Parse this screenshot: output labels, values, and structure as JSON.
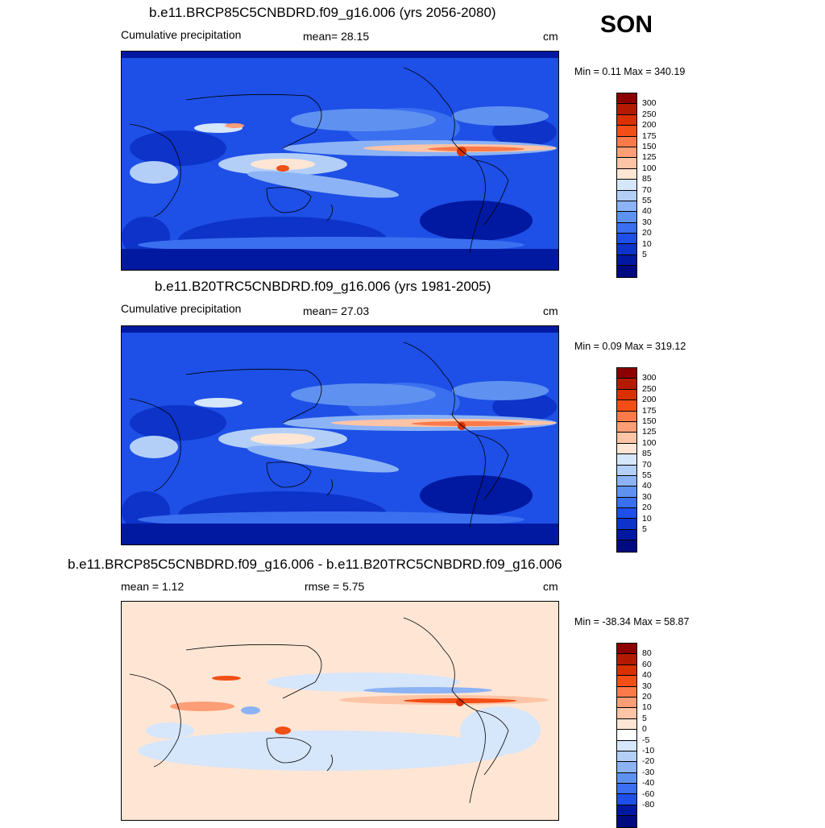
{
  "season": "SON",
  "panels": [
    {
      "title": "b.e11.BRCP85C5CNBDRD.f09_g16.006 (yrs 2056-2080)",
      "left_label": "Cumulative precipitation",
      "center_label": "mean=  28.15",
      "units": "cm",
      "minmax": "Min =   0.11 Max = 340.19",
      "colorbar": {
        "colors": [
          "#8b0000",
          "#b21b00",
          "#d73100",
          "#f24f16",
          "#fa7a4a",
          "#fd9e77",
          "#fec4a6",
          "#ffe6d4",
          "#d6e6fb",
          "#b3cff8",
          "#8cb3f5",
          "#5f92f0",
          "#3a6ff0",
          "#1e4fe6",
          "#0d33c8",
          "#0019a0",
          "#000a80"
        ],
        "labels": [
          "300",
          "250",
          "200",
          "175",
          "150",
          "125",
          "100",
          "85",
          "70",
          "55",
          "40",
          "30",
          "20",
          "10",
          "5"
        ]
      }
    },
    {
      "title": "b.e11.B20TRC5CNBDRD.f09_g16.006 (yrs 1981-2005)",
      "left_label": "Cumulative precipitation",
      "center_label": "mean=  27.03",
      "units": "cm",
      "minmax": "Min =   0.09 Max = 319.12",
      "colorbar": {
        "colors": [
          "#8b0000",
          "#b21b00",
          "#d73100",
          "#f24f16",
          "#fa7a4a",
          "#fd9e77",
          "#fec4a6",
          "#ffe6d4",
          "#d6e6fb",
          "#b3cff8",
          "#8cb3f5",
          "#5f92f0",
          "#3a6ff0",
          "#1e4fe6",
          "#0d33c8",
          "#0019a0",
          "#000a80"
        ],
        "labels": [
          "300",
          "250",
          "200",
          "175",
          "150",
          "125",
          "100",
          "85",
          "70",
          "55",
          "40",
          "30",
          "20",
          "10",
          "5"
        ]
      }
    },
    {
      "title": "b.e11.BRCP85C5CNBDRD.f09_g16.006 - b.e11.B20TRC5CNBDRD.f09_g16.006",
      "left_label": "mean =   1.12",
      "center_label": "rmse =   5.75",
      "units": "cm",
      "minmax": "Min = -38.34 Max =  58.87",
      "colorbar": {
        "colors": [
          "#8b0000",
          "#b21b00",
          "#d73100",
          "#f24f16",
          "#fa7a4a",
          "#fd9e77",
          "#fec4a6",
          "#ffe6d4",
          "#ffffff",
          "#d6e6fb",
          "#b3cff8",
          "#8cb3f5",
          "#5f92f0",
          "#3a6ff0",
          "#1e4fe6",
          "#0019a0",
          "#000a80"
        ],
        "labels": [
          "80",
          "60",
          "40",
          "30",
          "20",
          "10",
          "5",
          "0",
          "-5",
          "-10",
          "-20",
          "-30",
          "-40",
          "-60",
          "-80"
        ]
      }
    }
  ]
}
